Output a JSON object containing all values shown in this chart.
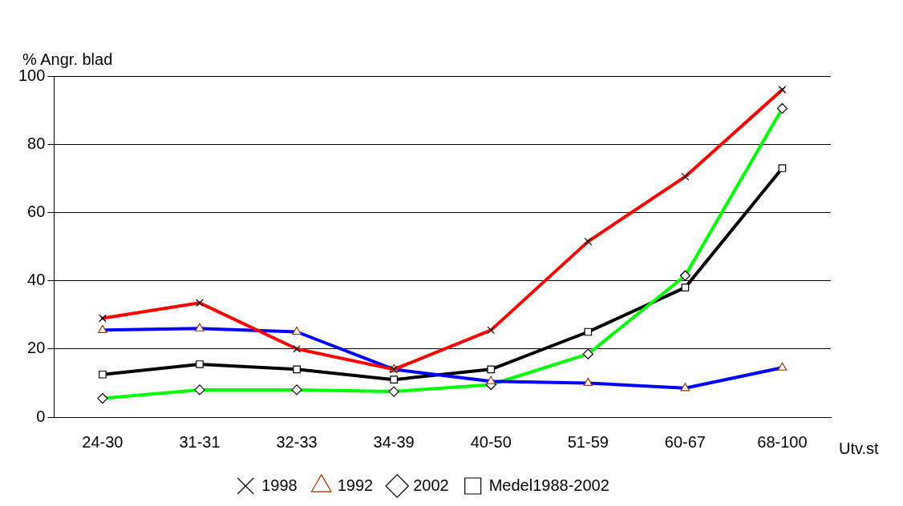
{
  "chart_data": {
    "type": "line",
    "ylabel": "% Angr. blad",
    "xlabel": "Utv.st",
    "categories": [
      "24-30",
      "31-31",
      "32-33",
      "34-39",
      "40-50",
      "51-59",
      "60-67",
      "68-100"
    ],
    "series": [
      {
        "name": "Medel1988-2002",
        "color": "#000000",
        "marker": "square",
        "values": [
          12.5,
          15.5,
          14,
          11,
          14,
          25,
          38,
          73
        ]
      },
      {
        "name": "2002",
        "color": "#00ff00",
        "marker": "diamond",
        "values": [
          5.5,
          8,
          8,
          7.5,
          9.5,
          18.5,
          41.5,
          90.5
        ]
      },
      {
        "name": "1992",
        "color": "#0000ff",
        "marker": "triangle",
        "values": [
          25.5,
          26,
          25,
          14,
          10.5,
          10,
          8.5,
          14.5
        ]
      },
      {
        "name": "1998",
        "color": "#ff0000",
        "marker": "cross",
        "values": [
          29,
          33.5,
          20,
          14,
          25.5,
          51.5,
          70.5,
          96
        ]
      }
    ],
    "ylim": [
      0,
      100
    ],
    "yticks": [
      0,
      20,
      40,
      60,
      80,
      100
    ],
    "grid": "y",
    "legend": "bottom",
    "line_style": "solid"
  }
}
